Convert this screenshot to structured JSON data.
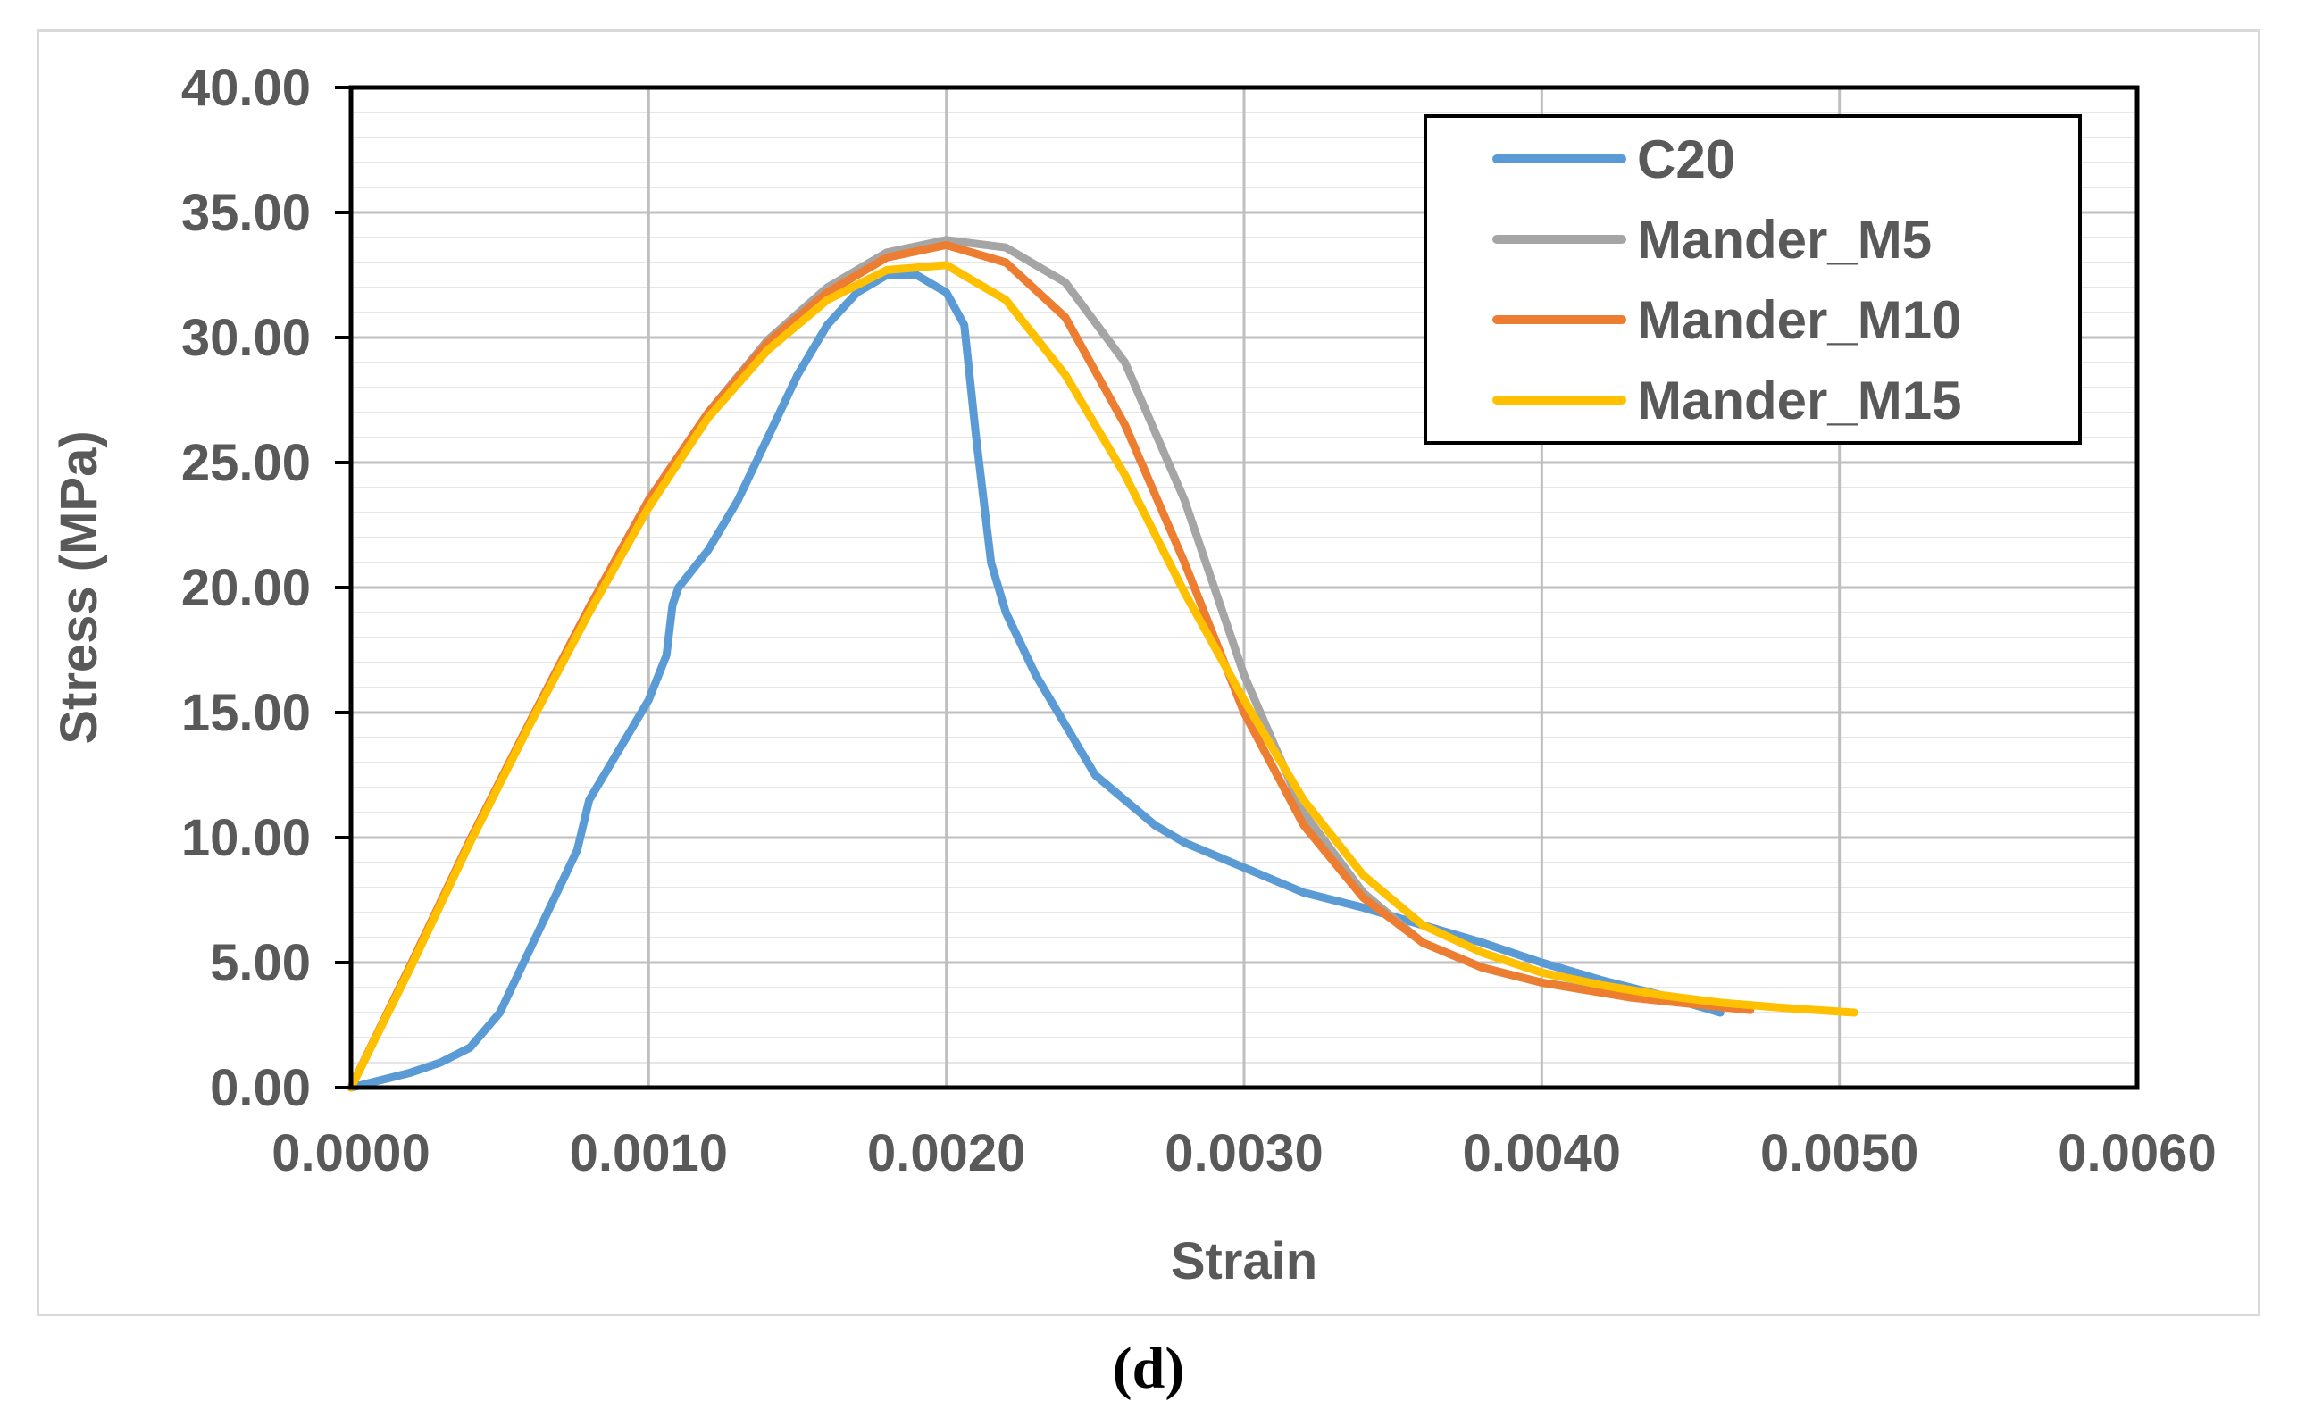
{
  "caption": "(d)",
  "chart_data": {
    "type": "line",
    "title": "",
    "xlabel": "Strain",
    "ylabel": "Stress (MPa)",
    "xlim": [
      0,
      0.006
    ],
    "ylim": [
      0,
      40
    ],
    "grid": true,
    "legend_position": "top-right",
    "x_ticks": [
      "0.0000",
      "0.0010",
      "0.0020",
      "0.0030",
      "0.0040",
      "0.0050",
      "0.0060"
    ],
    "x_tick_values": [
      0,
      0.001,
      0.002,
      0.003,
      0.004,
      0.005,
      0.006
    ],
    "y_ticks": [
      "0.00",
      "5.00",
      "10.00",
      "15.00",
      "20.00",
      "25.00",
      "30.00",
      "35.00",
      "40.00"
    ],
    "y_tick_values": [
      0,
      5,
      10,
      15,
      20,
      25,
      30,
      35,
      40
    ],
    "series": [
      {
        "name": "C20",
        "color": "#5b9bd5",
        "points": [
          [
            0,
            0
          ],
          [
            0.0001,
            0.3
          ],
          [
            0.0002,
            0.6
          ],
          [
            0.0003,
            1.0
          ],
          [
            0.0004,
            1.6
          ],
          [
            0.0005,
            3.0
          ],
          [
            0.0006,
            5.5
          ],
          [
            0.0007,
            8.0
          ],
          [
            0.00076,
            9.5
          ],
          [
            0.0008,
            11.5
          ],
          [
            0.0009,
            13.5
          ],
          [
            0.001,
            15.5
          ],
          [
            0.00106,
            17.3
          ],
          [
            0.00108,
            19.3
          ],
          [
            0.0011,
            20.0
          ],
          [
            0.0012,
            21.5
          ],
          [
            0.0013,
            23.5
          ],
          [
            0.0014,
            26.0
          ],
          [
            0.0015,
            28.5
          ],
          [
            0.0016,
            30.5
          ],
          [
            0.0017,
            31.8
          ],
          [
            0.0018,
            32.5
          ],
          [
            0.0019,
            32.5
          ],
          [
            0.002,
            31.8
          ],
          [
            0.00206,
            30.5
          ],
          [
            0.0021,
            26.0
          ],
          [
            0.00215,
            21.0
          ],
          [
            0.0022,
            19.0
          ],
          [
            0.0023,
            16.5
          ],
          [
            0.0024,
            14.5
          ],
          [
            0.0025,
            12.5
          ],
          [
            0.0026,
            11.5
          ],
          [
            0.0027,
            10.5
          ],
          [
            0.0028,
            9.8
          ],
          [
            0.003,
            8.8
          ],
          [
            0.0032,
            7.8
          ],
          [
            0.0034,
            7.2
          ],
          [
            0.0036,
            6.5
          ],
          [
            0.0038,
            5.8
          ],
          [
            0.004,
            5.0
          ],
          [
            0.0042,
            4.3
          ],
          [
            0.0044,
            3.7
          ],
          [
            0.0046,
            3.0
          ]
        ]
      },
      {
        "name": "Mander_M5",
        "color": "#a5a5a5",
        "points": [
          [
            0,
            0
          ],
          [
            0.0002,
            4.9
          ],
          [
            0.0004,
            9.9
          ],
          [
            0.0006,
            14.6
          ],
          [
            0.0008,
            19.2
          ],
          [
            0.001,
            23.5
          ],
          [
            0.0012,
            27.0
          ],
          [
            0.0014,
            29.9
          ],
          [
            0.0016,
            32.0
          ],
          [
            0.0018,
            33.4
          ],
          [
            0.002,
            33.9
          ],
          [
            0.0022,
            33.6
          ],
          [
            0.0024,
            32.2
          ],
          [
            0.0026,
            29.0
          ],
          [
            0.0028,
            23.5
          ],
          [
            0.003,
            16.5
          ],
          [
            0.0032,
            11.0
          ],
          [
            0.0034,
            7.8
          ],
          [
            0.0036,
            5.8
          ],
          [
            0.0038,
            4.8
          ],
          [
            0.004,
            4.2
          ],
          [
            0.0043,
            3.7
          ],
          [
            0.0047,
            3.2
          ]
        ]
      },
      {
        "name": "Mander_M10",
        "color": "#ed7d31",
        "points": [
          [
            0,
            0
          ],
          [
            0.0002,
            4.9
          ],
          [
            0.0004,
            9.9
          ],
          [
            0.0006,
            14.6
          ],
          [
            0.0008,
            19.2
          ],
          [
            0.001,
            23.5
          ],
          [
            0.0012,
            27.0
          ],
          [
            0.0014,
            29.8
          ],
          [
            0.0016,
            31.8
          ],
          [
            0.0018,
            33.2
          ],
          [
            0.002,
            33.7
          ],
          [
            0.0022,
            33.0
          ],
          [
            0.0024,
            30.8
          ],
          [
            0.0026,
            26.5
          ],
          [
            0.0028,
            21.0
          ],
          [
            0.003,
            15.0
          ],
          [
            0.0032,
            10.5
          ],
          [
            0.0034,
            7.6
          ],
          [
            0.0036,
            5.8
          ],
          [
            0.0038,
            4.8
          ],
          [
            0.004,
            4.2
          ],
          [
            0.0043,
            3.6
          ],
          [
            0.0047,
            3.1
          ]
        ]
      },
      {
        "name": "Mander_M15",
        "color": "#ffc000",
        "points": [
          [
            0,
            0
          ],
          [
            0.0002,
            4.8
          ],
          [
            0.0004,
            9.8
          ],
          [
            0.0006,
            14.5
          ],
          [
            0.0008,
            19.0
          ],
          [
            0.001,
            23.2
          ],
          [
            0.0012,
            26.8
          ],
          [
            0.0014,
            29.5
          ],
          [
            0.0016,
            31.5
          ],
          [
            0.0018,
            32.7
          ],
          [
            0.002,
            32.9
          ],
          [
            0.0022,
            31.5
          ],
          [
            0.0024,
            28.5
          ],
          [
            0.0026,
            24.5
          ],
          [
            0.0028,
            19.8
          ],
          [
            0.003,
            15.5
          ],
          [
            0.0032,
            11.5
          ],
          [
            0.0034,
            8.5
          ],
          [
            0.0036,
            6.5
          ],
          [
            0.0038,
            5.4
          ],
          [
            0.004,
            4.6
          ],
          [
            0.0042,
            4.1
          ],
          [
            0.0044,
            3.7
          ],
          [
            0.0046,
            3.4
          ],
          [
            0.0048,
            3.2
          ],
          [
            0.00505,
            3.0
          ]
        ]
      }
    ]
  }
}
